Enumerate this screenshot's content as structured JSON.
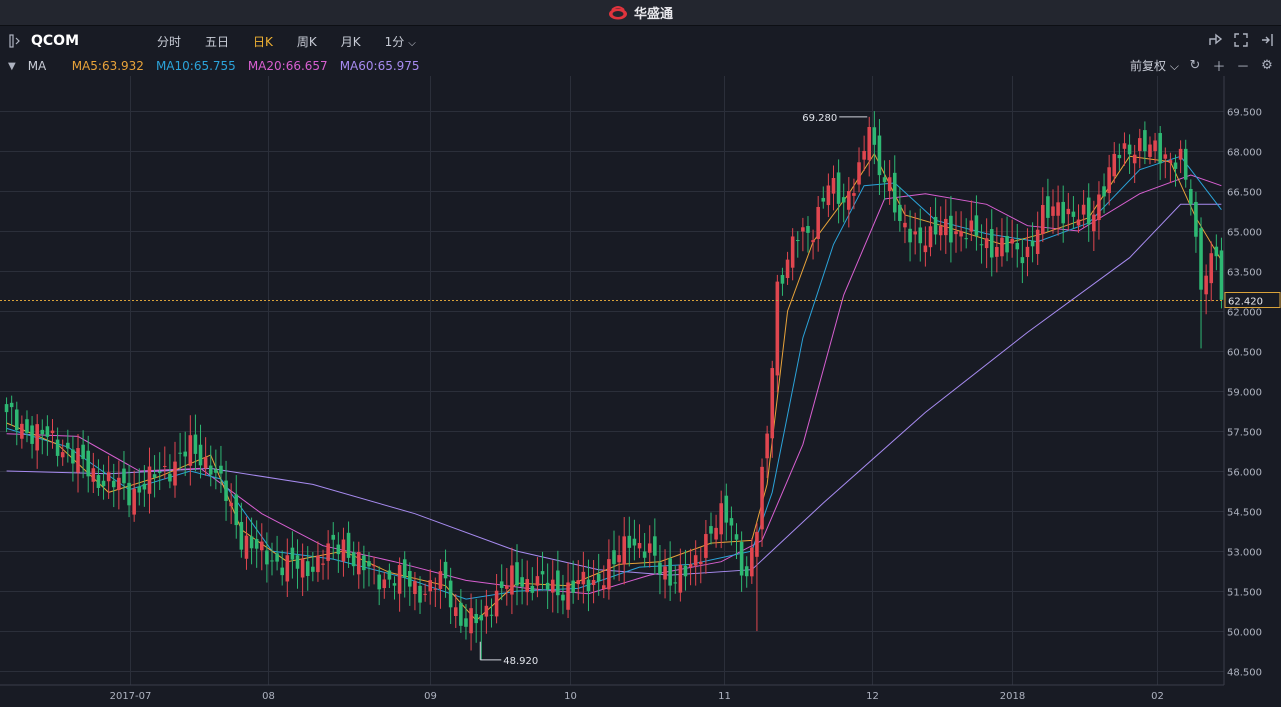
{
  "window": {
    "title": "华盛通"
  },
  "toolbar": {
    "symbol": "QCOM",
    "periods": [
      "分时",
      "五日",
      "日K",
      "周K",
      "月K",
      "1分"
    ],
    "active_period": "日K"
  },
  "ma_bar": {
    "label": "MA",
    "ma5": "MA5:63.932",
    "ma10": "MA10:65.755",
    "ma20": "MA20:66.657",
    "ma60": "MA60:65.975",
    "adjust": "前复权"
  },
  "colors": {
    "up": "#e0464f",
    "down": "#2eb873",
    "ma5": "#e8a33a",
    "ma10": "#2ba3d9",
    "ma20": "#d75fd0",
    "ma60": "#a78bf0",
    "active": "#f0b233",
    "grid": "#2b2f3a"
  },
  "icons": [
    "sidebar-toggle-icon",
    "chevron-down-icon",
    "share-icon",
    "fullscreen-icon",
    "collapse-icon",
    "refresh-icon",
    "zoom-in-icon",
    "zoom-out-icon",
    "settings-icon",
    "app-logo-icon"
  ],
  "chart_data": {
    "type": "candlestick",
    "title": "",
    "yticks": [
      "69.500",
      "68.000",
      "66.500",
      "65.000",
      "63.500",
      "62.000",
      "60.500",
      "59.000",
      "57.500",
      "56.000",
      "54.500",
      "53.000",
      "51.500",
      "50.000",
      "48.500"
    ],
    "ylim": [
      48.3,
      70.0
    ],
    "x_labels": [
      {
        "label": "2017-07",
        "i": 0
      },
      {
        "label": "08",
        "i": 1
      },
      {
        "label": "09",
        "i": 2
      },
      {
        "label": "10",
        "i": 3
      },
      {
        "label": "11",
        "i": 4
      },
      {
        "label": "12",
        "i": 5
      },
      {
        "label": "2018",
        "i": 6
      },
      {
        "label": "02",
        "i": 7
      }
    ],
    "current_price": "62.420",
    "max_label": "69.280",
    "min_label": "48.920",
    "anchors": [
      [
        0,
        58.0
      ],
      [
        4,
        57.6
      ],
      [
        8,
        57.2
      ],
      [
        12,
        56.8
      ],
      [
        16,
        56.0
      ],
      [
        20,
        55.6
      ],
      [
        24,
        55.2
      ],
      [
        28,
        55.6
      ],
      [
        32,
        56.2
      ],
      [
        36,
        56.8
      ],
      [
        40,
        56.3
      ],
      [
        43,
        55.0
      ],
      [
        46,
        53.6
      ],
      [
        50,
        52.8
      ],
      [
        54,
        52.6
      ],
      [
        58,
        52.3
      ],
      [
        62,
        52.8
      ],
      [
        66,
        53.3
      ],
      [
        70,
        52.3
      ],
      [
        74,
        52.0
      ],
      [
        78,
        51.9
      ],
      [
        82,
        51.5
      ],
      [
        86,
        51.9
      ],
      [
        88,
        50.8
      ],
      [
        90,
        50.2
      ],
      [
        92,
        50.4
      ],
      [
        95,
        51.2
      ],
      [
        99,
        51.9
      ],
      [
        103,
        51.9
      ],
      [
        107,
        51.6
      ],
      [
        111,
        51.6
      ],
      [
        115,
        51.9
      ],
      [
        119,
        52.4
      ],
      [
        122,
        53.6
      ],
      [
        125,
        53.0
      ],
      [
        128,
        52.4
      ],
      [
        131,
        52.0
      ],
      [
        134,
        52.2
      ],
      [
        137,
        53.6
      ],
      [
        140,
        54.2
      ],
      [
        142,
        54.0
      ],
      [
        145,
        52.0
      ],
      [
        147,
        53.8
      ],
      [
        149,
        57.5
      ],
      [
        151,
        63.0
      ],
      [
        153,
        63.8
      ],
      [
        155,
        64.8
      ],
      [
        158,
        65.2
      ],
      [
        161,
        66.6
      ],
      [
        164,
        66.2
      ],
      [
        167,
        67.2
      ],
      [
        169,
        68.3
      ],
      [
        171,
        67.5
      ],
      [
        173,
        66.8
      ],
      [
        175,
        65.0
      ],
      [
        178,
        64.9
      ],
      [
        181,
        64.7
      ],
      [
        184,
        65.2
      ],
      [
        188,
        64.9
      ],
      [
        192,
        64.6
      ],
      [
        196,
        64.3
      ],
      [
        200,
        64.3
      ],
      [
        203,
        65.4
      ],
      [
        206,
        66.1
      ],
      [
        209,
        65.4
      ],
      [
        212,
        65.5
      ],
      [
        215,
        66.7
      ],
      [
        218,
        67.9
      ],
      [
        221,
        68.3
      ],
      [
        224,
        68.0
      ],
      [
        227,
        67.9
      ],
      [
        230,
        67.6
      ],
      [
        232,
        66.0
      ],
      [
        234,
        63.0
      ],
      [
        236,
        64.0
      ],
      [
        238,
        64.5
      ]
    ],
    "ma_lines": {
      "ma5": [
        [
          0,
          57.8
        ],
        [
          10,
          57.0
        ],
        [
          20,
          55.2
        ],
        [
          30,
          55.8
        ],
        [
          40,
          56.6
        ],
        [
          46,
          53.8
        ],
        [
          55,
          52.6
        ],
        [
          66,
          53.0
        ],
        [
          75,
          52.2
        ],
        [
          86,
          51.7
        ],
        [
          92,
          50.4
        ],
        [
          100,
          51.8
        ],
        [
          110,
          51.7
        ],
        [
          120,
          52.5
        ],
        [
          128,
          52.6
        ],
        [
          138,
          53.3
        ],
        [
          146,
          53.4
        ],
        [
          149,
          55.5
        ],
        [
          153,
          62.0
        ],
        [
          158,
          64.6
        ],
        [
          165,
          66.4
        ],
        [
          170,
          67.9
        ],
        [
          176,
          65.6
        ],
        [
          185,
          65.1
        ],
        [
          195,
          64.5
        ],
        [
          203,
          64.9
        ],
        [
          212,
          65.5
        ],
        [
          220,
          67.8
        ],
        [
          228,
          67.6
        ],
        [
          233,
          65.5
        ],
        [
          238,
          63.9
        ]
      ],
      "ma10": [
        [
          0,
          57.6
        ],
        [
          12,
          56.9
        ],
        [
          24,
          55.3
        ],
        [
          36,
          56.0
        ],
        [
          42,
          55.7
        ],
        [
          52,
          53.0
        ],
        [
          64,
          52.7
        ],
        [
          78,
          52.0
        ],
        [
          90,
          51.2
        ],
        [
          100,
          51.5
        ],
        [
          112,
          51.6
        ],
        [
          124,
          52.4
        ],
        [
          134,
          52.5
        ],
        [
          146,
          53.0
        ],
        [
          150,
          55.2
        ],
        [
          156,
          61.0
        ],
        [
          162,
          64.5
        ],
        [
          168,
          66.7
        ],
        [
          174,
          66.8
        ],
        [
          182,
          65.4
        ],
        [
          192,
          64.9
        ],
        [
          202,
          64.6
        ],
        [
          212,
          65.3
        ],
        [
          222,
          67.3
        ],
        [
          230,
          67.8
        ],
        [
          238,
          65.8
        ]
      ],
      "ma20": [
        [
          0,
          57.4
        ],
        [
          14,
          57.3
        ],
        [
          26,
          56.0
        ],
        [
          38,
          56.1
        ],
        [
          50,
          54.4
        ],
        [
          62,
          53.2
        ],
        [
          76,
          52.6
        ],
        [
          90,
          51.9
        ],
        [
          102,
          51.6
        ],
        [
          114,
          51.4
        ],
        [
          126,
          52.1
        ],
        [
          140,
          52.6
        ],
        [
          148,
          53.4
        ],
        [
          156,
          57.0
        ],
        [
          164,
          62.6
        ],
        [
          172,
          66.2
        ],
        [
          180,
          66.4
        ],
        [
          192,
          66.0
        ],
        [
          200,
          65.2
        ],
        [
          210,
          65.0
        ],
        [
          222,
          66.4
        ],
        [
          232,
          67.1
        ],
        [
          238,
          66.7
        ]
      ],
      "ma60": [
        [
          0,
          56.0
        ],
        [
          20,
          55.9
        ],
        [
          40,
          56.1
        ],
        [
          60,
          55.5
        ],
        [
          80,
          54.4
        ],
        [
          100,
          53.0
        ],
        [
          116,
          52.3
        ],
        [
          130,
          52.1
        ],
        [
          146,
          52.3
        ],
        [
          160,
          54.8
        ],
        [
          180,
          58.2
        ],
        [
          200,
          61.2
        ],
        [
          220,
          64.0
        ],
        [
          230,
          66.0
        ],
        [
          238,
          66.0
        ]
      ]
    }
  }
}
